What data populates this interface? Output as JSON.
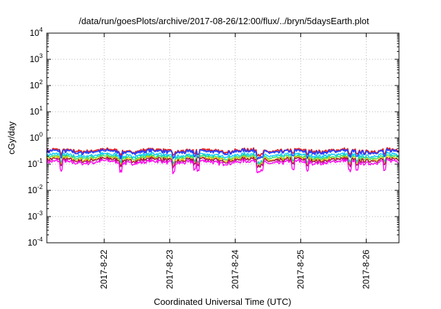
{
  "chart_data": {
    "type": "line",
    "title": "/data/run/goesPlots/archive/2017-08-26/12:00/flux/../bryn/5daysEarth.plot",
    "xlabel": "Coordinated Universal Time (UTC)",
    "ylabel": "cGy/day",
    "yscale": "log",
    "ylim": [
      0.0001,
      10000
    ],
    "xlim": [
      "2017-08-21 03:00",
      "2017-08-26 12:00"
    ],
    "y_ticks": [
      {
        "base": "10",
        "exp": "-4",
        "value": 0.0001
      },
      {
        "base": "10",
        "exp": "-3",
        "value": 0.001
      },
      {
        "base": "10",
        "exp": "-2",
        "value": 0.01
      },
      {
        "base": "10",
        "exp": "-1",
        "value": 0.1
      },
      {
        "base": "10",
        "exp": "0",
        "value": 1
      },
      {
        "base": "10",
        "exp": "1",
        "value": 10
      },
      {
        "base": "10",
        "exp": "2",
        "value": 100
      },
      {
        "base": "10",
        "exp": "3",
        "value": 1000
      },
      {
        "base": "10",
        "exp": "4",
        "value": 10000
      }
    ],
    "x_ticks": [
      "2017-8-22",
      "2017-8-23",
      "2017-8-24",
      "2017-8-25",
      "2017-8-26"
    ],
    "grid": true,
    "legend": "none",
    "series": [
      {
        "color": "#e8201c",
        "level": 0.33,
        "dip": 0.7
      },
      {
        "color": "#2d3dff",
        "level": 0.3,
        "dip": 0.6
      },
      {
        "color": "#00c8ff",
        "level": 0.22,
        "dip": 0.55
      },
      {
        "color": "#33dd66",
        "level": 0.185,
        "dip": 0.6
      },
      {
        "color": "#e8c200",
        "level": 0.16,
        "dip": 0.6
      },
      {
        "color": "#a01050",
        "level": 0.145,
        "dip": 0.6
      },
      {
        "color": "#ff00ee",
        "level": 0.12,
        "dip": 0.45
      }
    ]
  }
}
